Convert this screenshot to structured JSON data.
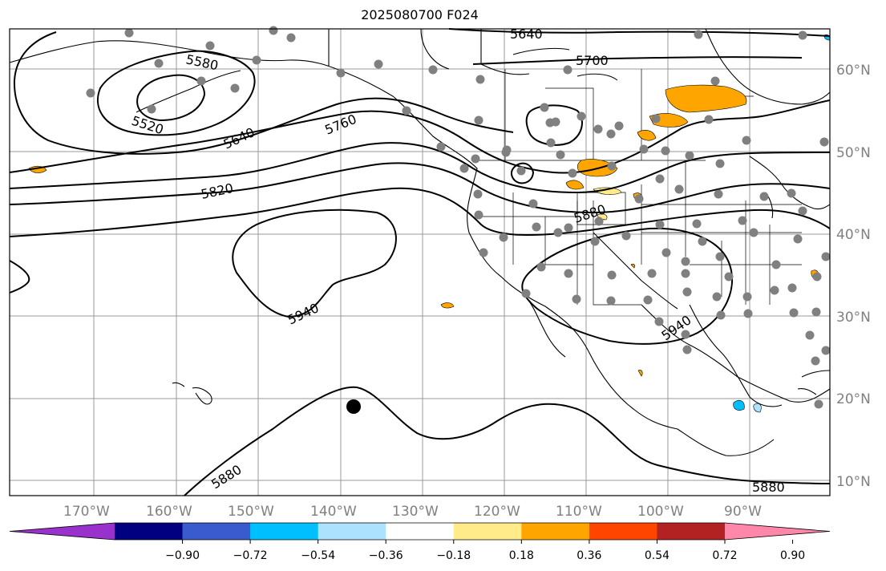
{
  "title": "2025080700 F024",
  "longitude_labels": [
    "170°W",
    "160°W",
    "150°W",
    "140°W",
    "130°W",
    "120°W",
    "110°W",
    "100°W",
    "90°W"
  ],
  "latitude_labels": [
    "60°N",
    "50°N",
    "40°N",
    "30°N",
    "20°N",
    "10°N"
  ],
  "contour_labels": [
    "5640",
    "5700",
    "5580",
    "5520",
    "5640",
    "5760",
    "5820",
    "5880",
    "5940",
    "5940",
    "5880",
    "5880"
  ],
  "colorbar": {
    "tick_labels": [
      "−0.90",
      "−0.72",
      "−0.54",
      "−0.36",
      "−0.18",
      "0.18",
      "0.36",
      "0.54",
      "0.72",
      "0.90"
    ],
    "colors": [
      "#9932CC",
      "#000080",
      "#3A5BCD",
      "#00BFFF",
      "#ADE2FF",
      "#FFFFFF",
      "#FFEB8A",
      "#FFA500",
      "#FF4500",
      "#B22222",
      "#FF88AA"
    ]
  }
}
